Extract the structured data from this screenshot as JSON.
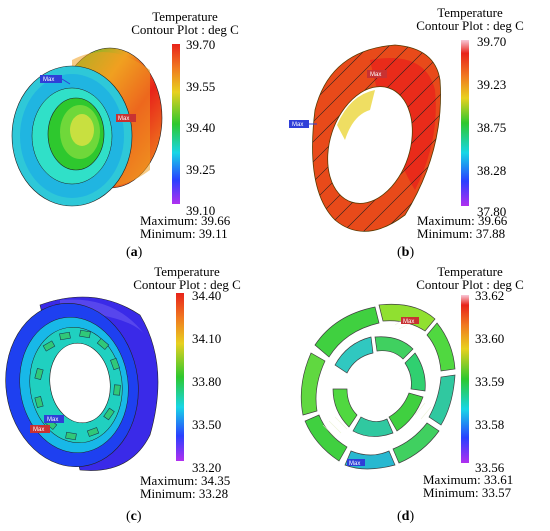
{
  "panels": [
    {
      "id": "a",
      "header_line1": "Temperature",
      "header_line2": "Contour Plot : deg C",
      "ticks": [
        "39.70",
        "39.55",
        "39.40",
        "39.25",
        "39.10"
      ],
      "maximum": "Maximum: 39.66",
      "minimum": "Minimum: 39.11",
      "label_letter": "a",
      "markers": [
        "Max",
        "Max"
      ]
    },
    {
      "id": "b",
      "header_line1": "Temperature",
      "header_line2": "Contour Plot : deg C",
      "ticks": [
        "39.70",
        "39.23",
        "38.75",
        "38.28",
        "37.80"
      ],
      "maximum": "Maximum: 39.66",
      "minimum": "Minimum: 37.88",
      "label_letter": "b",
      "markers": [
        "Max",
        "Max"
      ]
    },
    {
      "id": "c",
      "header_line1": "Temperature",
      "header_line2": "Contour Plot : deg C",
      "ticks": [
        "34.40",
        "34.10",
        "33.80",
        "33.50",
        "33.20"
      ],
      "maximum": "Maximum: 34.35",
      "minimum": "Minimum: 33.28",
      "label_letter": "c",
      "markers": [
        "Max",
        "Max"
      ]
    },
    {
      "id": "d",
      "header_line1": "Temperature",
      "header_line2": "Contour Plot : deg C",
      "ticks": [
        "33.62",
        "33.60",
        "33.59",
        "33.58",
        "33.56"
      ],
      "maximum": "Maximum: 33.61",
      "minimum": "Minimum: 33.57",
      "label_letter": "d",
      "markers": [
        "Max",
        "Max"
      ]
    }
  ],
  "colors": {
    "scale_top": "#e8231a",
    "scale_orange": "#f0a020",
    "scale_green": "#2ec82e",
    "scale_cyan": "#18d6e6",
    "scale_blue": "#2a40ff",
    "scale_bottom": "#b030f0",
    "marker_blue": "#2f3fd8",
    "marker_red": "#c83232"
  }
}
